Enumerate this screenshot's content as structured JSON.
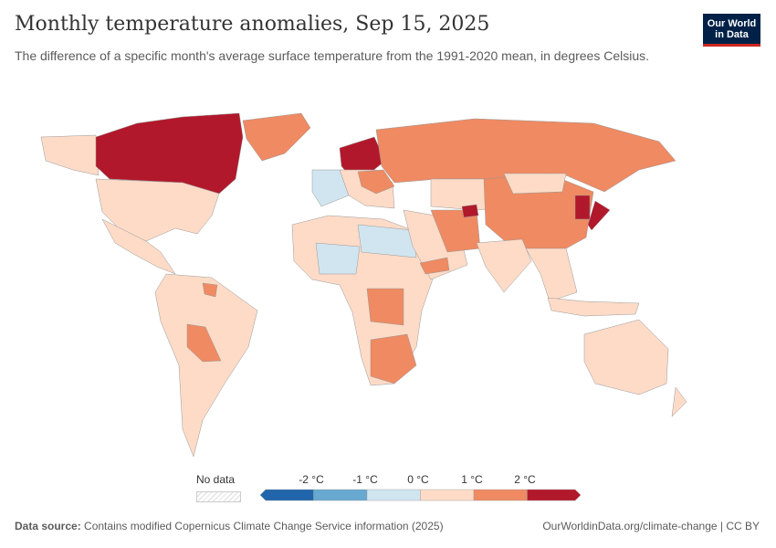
{
  "header": {
    "title": "Monthly temperature anomalies, Sep 15, 2025",
    "subtitle": "The difference of a specific month's average surface temperature from the 1991-2020 mean, in degrees Celsius.",
    "logo": "Our World in Data"
  },
  "legend": {
    "no_data": "No data",
    "ticks": [
      "-2 °C",
      "-1 °C",
      "0 °C",
      "1 °C",
      "2 °C"
    ],
    "colors": [
      "#2166ac",
      "#67a9cf",
      "#d1e5f0",
      "#fddbc7",
      "#ef8a62",
      "#b2182b"
    ]
  },
  "footer": {
    "source_label": "Data source:",
    "source_text": "Contains modified Copernicus Climate Change Service information (2025)",
    "link": "OurWorldinData.org/climate-change | CC BY"
  }
}
